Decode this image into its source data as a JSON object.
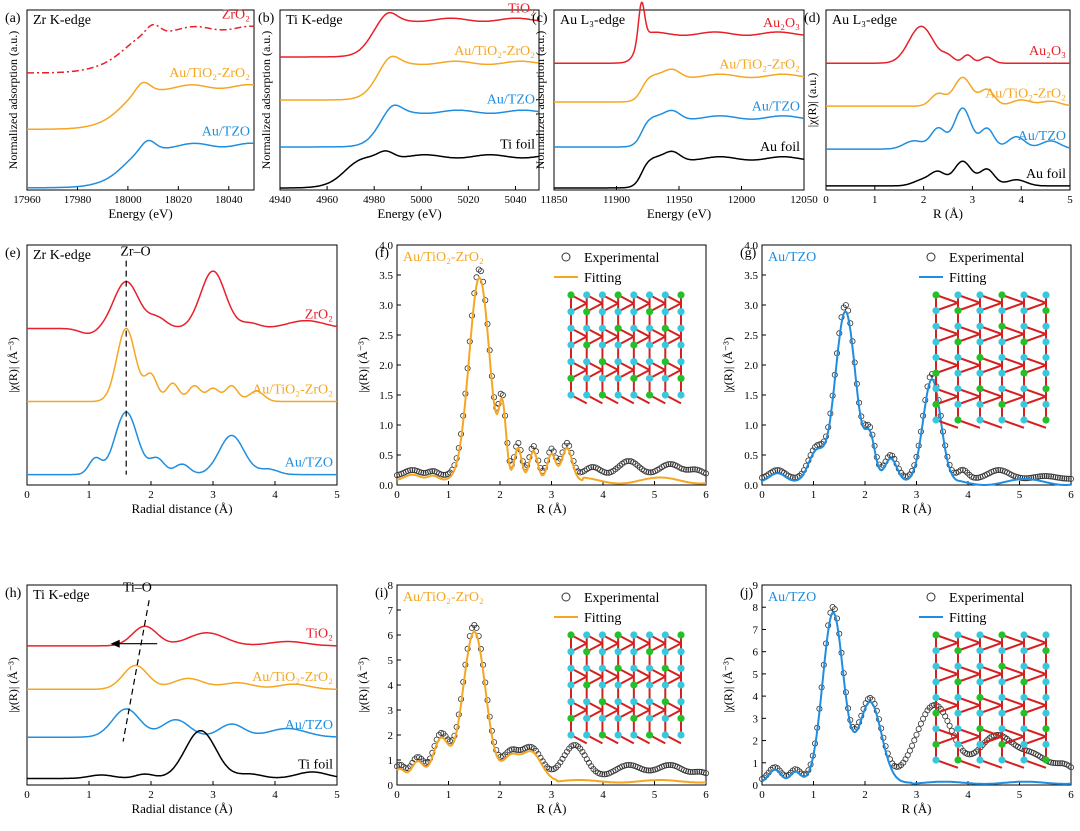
{
  "chart_data": [
    {
      "id": "a",
      "panel_label": "(a)",
      "type": "line",
      "title": "Zr K-edge",
      "xlabel": "Energy (eV)",
      "ylabel": "Normalized adsorption (a.u.)",
      "xlim": [
        17960,
        18050
      ],
      "ylim": [
        0,
        4
      ],
      "xticks": [
        17960,
        17980,
        18000,
        18020,
        18040
      ],
      "yticks": [],
      "annotations": [],
      "series": [
        {
          "name": "ZrO2",
          "label": "ZrO₂",
          "color": "#e8202a",
          "dash": true,
          "offset": 2.6,
          "amp": 1.0,
          "shape": "edge",
          "e0": 17998,
          "width": 6,
          "peak": 18010,
          "post": 1.0
        },
        {
          "name": "Au/TiO2-ZrO2",
          "label": "Au/TiO₂-ZrO₂",
          "color": "#f5a623",
          "offset": 1.35,
          "amp": 1.0,
          "shape": "edge",
          "e0": 17997,
          "width": 5,
          "peak": 18006,
          "post": 0.95
        },
        {
          "name": "Au/TZO",
          "label": "Au/TZO",
          "color": "#1f8ee0",
          "offset": 0.05,
          "amp": 1.0,
          "shape": "edge",
          "e0": 17998,
          "width": 5,
          "peak": 18008,
          "post": 0.95
        }
      ]
    },
    {
      "id": "b",
      "panel_label": "(b)",
      "type": "line",
      "title": "Ti K-edge",
      "xlabel": "Energy (eV)",
      "ylabel": "Normalized adsorption (a.u.)",
      "xlim": [
        4940,
        5050
      ],
      "ylim": [
        0,
        4.6
      ],
      "xticks": [
        4940,
        4960,
        4980,
        5000,
        5020,
        5040
      ],
      "yticks": [],
      "annotations": [],
      "series": [
        {
          "name": "TiO2",
          "label": "TiO₂",
          "color": "#e8202a",
          "offset": 3.4,
          "amp": 1.0,
          "shape": "edge",
          "e0": 4978,
          "width": 3,
          "peak": 4986,
          "post": 0.95
        },
        {
          "name": "Au/TiO2-ZrO2",
          "label": "Au/TiO₂-ZrO₂",
          "color": "#f5a623",
          "offset": 2.3,
          "amp": 1.0,
          "shape": "edge",
          "e0": 4980,
          "width": 3,
          "peak": 4987,
          "post": 0.95
        },
        {
          "name": "Au/TZO",
          "label": "Au/TZO",
          "color": "#1f8ee0",
          "offset": 1.1,
          "amp": 1.0,
          "shape": "edge",
          "e0": 4981,
          "width": 3,
          "peak": 4988,
          "post": 0.9
        },
        {
          "name": "Ti foil",
          "label": "Ti foil",
          "color": "#000000",
          "offset": 0.05,
          "amp": 0.9,
          "shape": "edge",
          "e0": 4967,
          "width": 4,
          "peak": 4985,
          "post": 0.9
        }
      ]
    },
    {
      "id": "c",
      "panel_label": "(c)",
      "type": "line",
      "title": "Au L₃-edge",
      "xlabel": "Energy (eV)",
      "ylabel": "Normalized adsorption (a.u.)",
      "xlim": [
        11850,
        12050
      ],
      "ylim": [
        0,
        4.4
      ],
      "xticks": [
        11850,
        11900,
        11950,
        12000,
        12050
      ],
      "yticks": [],
      "annotations": [],
      "series": [
        {
          "name": "Au2O3",
          "label": "Au₂O₃",
          "color": "#e8202a",
          "offset": 3.1,
          "amp": 0.85,
          "shape": "whiteline",
          "e0": 11916,
          "width": 3,
          "peak": 11920,
          "post": 0.85
        },
        {
          "name": "Au/TiO2-ZrO2",
          "label": "Au/TiO₂-ZrO₂",
          "color": "#f5a623",
          "offset": 2.15,
          "amp": 0.8,
          "shape": "edge",
          "e0": 11920,
          "width": 3,
          "peak": 11945,
          "post": 0.8
        },
        {
          "name": "Au/TZO",
          "label": "Au/TZO",
          "color": "#1f8ee0",
          "offset": 1.05,
          "amp": 0.85,
          "shape": "edge",
          "e0": 11920,
          "width": 3,
          "peak": 11945,
          "post": 0.85
        },
        {
          "name": "Au foil",
          "label": "Au foil",
          "color": "#000000",
          "offset": 0.05,
          "amp": 0.85,
          "shape": "edge",
          "e0": 11920,
          "width": 3,
          "peak": 11945,
          "post": 0.85
        }
      ]
    },
    {
      "id": "d",
      "panel_label": "(d)",
      "type": "line",
      "title": "Au L₃-edge",
      "xlabel": "R (Å)",
      "ylabel": "|χ(R)| (a.u.)",
      "xlim": [
        0,
        5
      ],
      "ylim": [
        0,
        4.4
      ],
      "xticks": [
        0,
        1,
        2,
        3,
        4,
        5
      ],
      "yticks": [],
      "annotations": [],
      "series": [
        {
          "name": "Au2O3",
          "label": "Au₂O₃",
          "color": "#e8202a",
          "offset": 3.1,
          "shape": "peaks",
          "peaks": [
            [
              1.95,
              0.9,
              0.25
            ],
            [
              2.5,
              0.15,
              0.12
            ],
            [
              2.9,
              0.2,
              0.1
            ],
            [
              3.3,
              0.15,
              0.12
            ]
          ]
        },
        {
          "name": "Au/TiO2-ZrO2",
          "label": "Au/TiO₂-ZrO₂",
          "color": "#f5a623",
          "offset": 2.05,
          "shape": "peaks",
          "peaks": [
            [
              2.3,
              0.3,
              0.15
            ],
            [
              2.8,
              0.7,
              0.18
            ],
            [
              3.3,
              0.4,
              0.15
            ],
            [
              4.0,
              0.15,
              0.2
            ],
            [
              4.6,
              0.12,
              0.2
            ]
          ]
        },
        {
          "name": "Au/TZO",
          "label": "Au/TZO",
          "color": "#1f8ee0",
          "offset": 1.0,
          "shape": "peaks",
          "peaks": [
            [
              1.8,
              0.2,
              0.2
            ],
            [
              2.3,
              0.5,
              0.15
            ],
            [
              2.8,
              1.0,
              0.17
            ],
            [
              3.3,
              0.5,
              0.14
            ],
            [
              3.9,
              0.3,
              0.18
            ],
            [
              4.6,
              0.2,
              0.2
            ]
          ]
        },
        {
          "name": "Au foil",
          "label": "Au foil",
          "color": "#000000",
          "offset": 0.1,
          "shape": "peaks",
          "peaks": [
            [
              2.0,
              0.15,
              0.2
            ],
            [
              2.3,
              0.3,
              0.15
            ],
            [
              2.8,
              0.6,
              0.18
            ],
            [
              3.3,
              0.4,
              0.15
            ],
            [
              3.9,
              0.15,
              0.2
            ]
          ]
        }
      ]
    },
    {
      "id": "e",
      "panel_label": "(e)",
      "type": "line",
      "title": "Zr K-edge",
      "xlabel": "Radial distance (Å)",
      "ylabel": "|χ(R)| (Å⁻³)",
      "xlim": [
        0,
        5
      ],
      "ylim": [
        0,
        4.6
      ],
      "xticks": [
        0,
        1,
        2,
        3,
        4,
        5
      ],
      "yticks": [],
      "annotations": [
        {
          "text": "Zr–O",
          "x": 1.75,
          "y": 4.4
        }
      ],
      "series": [
        {
          "name": "ZrO2",
          "label": "ZrO₂",
          "color": "#e8202a",
          "offset": 3.0,
          "shape": "peaks",
          "peaks": [
            [
              1.0,
              -0.1,
              0.15
            ],
            [
              1.6,
              0.9,
              0.2
            ],
            [
              2.1,
              0.2,
              0.15
            ],
            [
              3.0,
              1.1,
              0.2
            ],
            [
              3.6,
              0.1,
              0.15
            ],
            [
              4.5,
              0.15,
              0.3
            ]
          ]
        },
        {
          "name": "Au/TiO2-ZrO2",
          "label": "Au/TiO₂-ZrO₂",
          "color": "#f5a623",
          "offset": 1.6,
          "shape": "peaks",
          "peaks": [
            [
              1.6,
              1.4,
              0.15
            ],
            [
              2.0,
              0.5,
              0.1
            ],
            [
              2.35,
              0.35,
              0.1
            ],
            [
              2.7,
              0.3,
              0.1
            ],
            [
              3.0,
              0.25,
              0.1
            ],
            [
              3.3,
              0.3,
              0.1
            ],
            [
              3.7,
              0.2,
              0.12
            ]
          ]
        },
        {
          "name": "Au/TZO",
          "label": "Au/TZO",
          "color": "#1f8ee0",
          "offset": 0.2,
          "shape": "peaks",
          "peaks": [
            [
              1.1,
              0.3,
              0.1
            ],
            [
              1.6,
              1.2,
              0.18
            ],
            [
              2.1,
              0.3,
              0.12
            ],
            [
              2.5,
              0.2,
              0.12
            ],
            [
              3.3,
              0.75,
              0.2
            ],
            [
              3.9,
              0.1,
              0.15
            ]
          ]
        }
      ]
    },
    {
      "id": "f",
      "panel_label": "(f)",
      "type": "line",
      "title": "Au/TiO₂-ZrO₂",
      "title_color": "#f5a623",
      "xlabel": "R (Å)",
      "ylabel": "|χ(R)| (Å⁻³)",
      "xlim": [
        0,
        6
      ],
      "ylim": [
        0,
        4.0
      ],
      "xticks": [
        0,
        1,
        2,
        3,
        4,
        5,
        6
      ],
      "yticks": [
        0.0,
        0.5,
        1.0,
        1.5,
        2.0,
        2.5,
        3.0,
        3.5,
        4.0
      ],
      "legend": [
        "Experimental",
        "Fitting"
      ],
      "fit_color": "#f5a623",
      "annotations": [],
      "base": 0.15,
      "fit_range": [
        0,
        3.6
      ],
      "peaks": [
        [
          0.3,
          0.1,
          0.15
        ],
        [
          0.7,
          0.08,
          0.1
        ],
        [
          1.6,
          3.45,
          0.2
        ],
        [
          2.05,
          1.1,
          0.07
        ],
        [
          2.35,
          0.55,
          0.07
        ],
        [
          2.65,
          0.5,
          0.08
        ],
        [
          3.0,
          0.45,
          0.08
        ],
        [
          3.3,
          0.55,
          0.1
        ],
        [
          3.8,
          0.15,
          0.15
        ],
        [
          4.5,
          0.25,
          0.2
        ],
        [
          5.3,
          0.2,
          0.2
        ],
        [
          5.8,
          0.1,
          0.15
        ]
      ]
    },
    {
      "id": "g",
      "panel_label": "(g)",
      "type": "line",
      "title": "Au/TZO",
      "title_color": "#1f8ee0",
      "xlabel": "R (Å)",
      "ylabel": "|χ(R)| (Å⁻³)",
      "xlim": [
        0,
        6
      ],
      "ylim": [
        0,
        4.0
      ],
      "xticks": [
        0,
        1,
        2,
        3,
        4,
        5,
        6
      ],
      "yticks": [
        0.0,
        0.5,
        1.0,
        1.5,
        2.0,
        2.5,
        3.0,
        3.5,
        4.0
      ],
      "legend": [
        "Experimental",
        "Fitting"
      ],
      "fit_color": "#1f8ee0",
      "annotations": [],
      "base": 0.1,
      "fit_range": [
        0,
        3.8
      ],
      "peaks": [
        [
          0.3,
          0.15,
          0.15
        ],
        [
          1.05,
          0.5,
          0.15
        ],
        [
          1.62,
          2.9,
          0.2
        ],
        [
          2.1,
          0.7,
          0.1
        ],
        [
          2.5,
          0.4,
          0.12
        ],
        [
          3.3,
          1.75,
          0.17
        ],
        [
          3.9,
          0.15,
          0.1
        ],
        [
          4.6,
          0.15,
          0.2
        ],
        [
          5.5,
          0.05,
          0.2
        ]
      ]
    },
    {
      "id": "h",
      "panel_label": "(h)",
      "type": "line",
      "title": "Ti K-edge",
      "xlabel": "Radial distance (Å)",
      "ylabel": "|χ(R)| (Å⁻³)",
      "xlim": [
        0,
        5
      ],
      "ylim": [
        0,
        4.6
      ],
      "xticks": [
        0,
        1,
        2,
        3,
        4,
        5
      ],
      "yticks": [],
      "annotations": [
        {
          "text": "Ti–O",
          "x": 1.78,
          "y": 4.45
        }
      ],
      "series": [
        {
          "name": "TiO2",
          "label": "TiO₂",
          "color": "#e8202a",
          "offset": 3.2,
          "shape": "peaks",
          "peaks": [
            [
              1.9,
              0.45,
              0.2
            ],
            [
              2.9,
              0.3,
              0.3
            ],
            [
              4.2,
              0.1,
              0.3
            ]
          ]
        },
        {
          "name": "Au/TiO2-ZrO2",
          "label": "Au/TiO₂-ZrO₂",
          "color": "#f5a623",
          "offset": 2.2,
          "shape": "peaks",
          "peaks": [
            [
              1.75,
              0.55,
              0.2
            ],
            [
              2.6,
              0.25,
              0.25
            ],
            [
              3.4,
              0.15,
              0.25
            ],
            [
              4.3,
              0.12,
              0.25
            ]
          ]
        },
        {
          "name": "Au/TZO",
          "label": "Au/TZO",
          "color": "#1f8ee0",
          "offset": 1.1,
          "shape": "peaks",
          "peaks": [
            [
              1.6,
              0.65,
              0.22
            ],
            [
              2.4,
              0.4,
              0.22
            ],
            [
              3.3,
              0.3,
              0.2
            ],
            [
              4.2,
              0.2,
              0.3
            ]
          ]
        },
        {
          "name": "Ti foil",
          "label": "Ti foil",
          "color": "#000000",
          "offset": 0.15,
          "shape": "peaks",
          "peaks": [
            [
              1.2,
              0.08,
              0.2
            ],
            [
              1.9,
              0.1,
              0.15
            ],
            [
              2.8,
              1.1,
              0.25
            ],
            [
              3.6,
              0.1,
              0.2
            ],
            [
              4.6,
              0.15,
              0.25
            ]
          ]
        }
      ]
    },
    {
      "id": "i",
      "panel_label": "(i)",
      "type": "line",
      "title": "Au/TiO₂-ZrO₂",
      "title_color": "#f5a623",
      "xlabel": "R (Å)",
      "ylabel": "|χ(R)| (Å⁻³)",
      "xlim": [
        0,
        6
      ],
      "ylim": [
        0,
        8
      ],
      "xticks": [
        0,
        1,
        2,
        3,
        4,
        5,
        6
      ],
      "yticks": [
        0,
        1,
        2,
        3,
        4,
        5,
        6,
        7,
        8
      ],
      "legend": [
        "Experimental",
        "Fitting"
      ],
      "fit_color": "#f5a623",
      "annotations": [],
      "base": 0.3,
      "fit_range": [
        0,
        3.1
      ],
      "peaks": [
        [
          0.05,
          0.5,
          0.1
        ],
        [
          0.4,
          0.8,
          0.12
        ],
        [
          0.85,
          1.7,
          0.15
        ],
        [
          1.5,
          6.1,
          0.22
        ],
        [
          2.2,
          0.9,
          0.15
        ],
        [
          2.6,
          1.2,
          0.2
        ],
        [
          3.45,
          1.3,
          0.22
        ],
        [
          4.5,
          0.5,
          0.25
        ],
        [
          5.3,
          0.5,
          0.25
        ],
        [
          5.9,
          0.2,
          0.15
        ]
      ]
    },
    {
      "id": "j",
      "panel_label": "(j)",
      "type": "line",
      "title": "Au/TZO",
      "title_color": "#1f8ee0",
      "xlabel": "R (Å)",
      "ylabel": "|χ(R)| (Å⁻³)",
      "xlim": [
        0,
        6
      ],
      "ylim": [
        0,
        9
      ],
      "xticks": [
        0,
        1,
        2,
        3,
        4,
        5,
        6
      ],
      "yticks": [
        0,
        1,
        2,
        3,
        4,
        5,
        6,
        7,
        8,
        9
      ],
      "legend": [
        "Experimental",
        "Fitting"
      ],
      "fit_color": "#1f8ee0",
      "annotations": [],
      "base": 0.2,
      "fit_range": [
        0,
        2.9
      ],
      "peaks": [
        [
          0.25,
          0.6,
          0.12
        ],
        [
          0.65,
          0.5,
          0.1
        ],
        [
          1.38,
          7.8,
          0.2
        ],
        [
          2.1,
          3.7,
          0.22
        ],
        [
          3.35,
          3.4,
          0.35
        ],
        [
          4.55,
          2.0,
          0.35
        ],
        [
          5.3,
          1.0,
          0.3
        ],
        [
          5.9,
          0.6,
          0.2
        ]
      ]
    }
  ]
}
